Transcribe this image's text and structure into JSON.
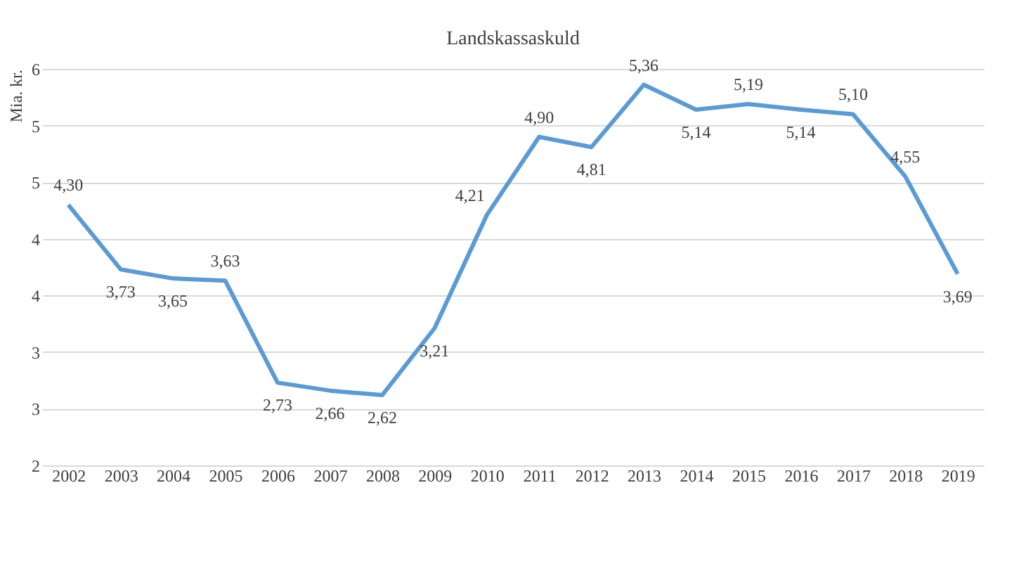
{
  "chart_data": {
    "type": "line",
    "title": "Landskassaskuld",
    "ylabel": "Mia. kr.",
    "categories": [
      "2002",
      "2003",
      "2004",
      "2005",
      "2006",
      "2007",
      "2008",
      "2009",
      "2010",
      "2011",
      "2012",
      "2013",
      "2014",
      "2015",
      "2016",
      "2017",
      "2018",
      "2019"
    ],
    "series": [
      {
        "color": "#5b9bd5",
        "values": [
          4.3,
          3.73,
          3.65,
          3.63,
          2.73,
          2.66,
          2.62,
          3.21,
          4.21,
          4.9,
          4.81,
          5.36,
          5.14,
          5.19,
          5.14,
          5.1,
          4.55,
          3.69
        ],
        "value_labels": [
          "4,30",
          "3,73",
          "3,65",
          "3,63",
          "2,73",
          "2,66",
          "2,62",
          "3,21",
          "4,21",
          "4,90",
          "4,81",
          "5,36",
          "5,14",
          "5,19",
          "5,14",
          "5,10",
          "4,55",
          "3,69"
        ]
      }
    ],
    "ylim": [
      2,
      5.5
    ],
    "yticks": [
      2,
      {
        "value": 2.5,
        "label": "3"
      },
      3,
      {
        "value": 3.5,
        "label": "4"
      },
      4,
      {
        "value": 4.5,
        "label": "5"
      },
      5,
      {
        "value": 5.5,
        "label": "6"
      }
    ],
    "grid": "y",
    "marker": "none",
    "line_style": "solid"
  }
}
